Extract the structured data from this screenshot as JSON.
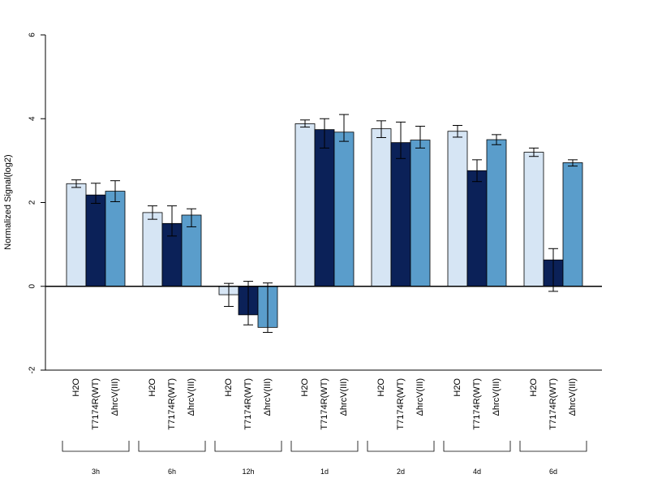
{
  "chart_data": {
    "type": "bar",
    "ylabel": "Normalized Signal(log2)",
    "ylim": [
      -2,
      6
    ],
    "yticks": [
      -2,
      0,
      2,
      4,
      6
    ],
    "series_names": [
      "H2O",
      "T7174R(WT)",
      "ΔhrcV(III)"
    ],
    "colors": [
      "#d6e5f4",
      "#0b2158",
      "#5a9dcb"
    ],
    "groups": [
      {
        "label": "3h",
        "values": [
          2.45,
          2.18,
          2.27
        ],
        "err_low": [
          2.36,
          1.98,
          2.02
        ],
        "err_high": [
          2.54,
          2.46,
          2.52
        ]
      },
      {
        "label": "6h",
        "values": [
          1.76,
          1.5,
          1.7
        ],
        "err_low": [
          1.6,
          1.2,
          1.42
        ],
        "err_high": [
          1.92,
          1.92,
          1.85
        ]
      },
      {
        "label": "12h",
        "values": [
          -0.2,
          -0.68,
          -0.98
        ],
        "err_low": [
          -0.48,
          -0.92,
          -1.1
        ],
        "err_high": [
          0.07,
          0.12,
          0.08
        ]
      },
      {
        "label": "1d",
        "values": [
          3.88,
          3.74,
          3.68
        ],
        "err_low": [
          3.8,
          3.3,
          3.46
        ],
        "err_high": [
          3.97,
          4.0,
          4.1
        ]
      },
      {
        "label": "2d",
        "values": [
          3.76,
          3.43,
          3.49
        ],
        "err_low": [
          3.55,
          3.05,
          3.3
        ],
        "err_high": [
          3.95,
          3.92,
          3.82
        ]
      },
      {
        "label": "4d",
        "values": [
          3.7,
          2.76,
          3.5
        ],
        "err_low": [
          3.56,
          2.5,
          3.38
        ],
        "err_high": [
          3.84,
          3.02,
          3.62
        ]
      },
      {
        "label": "6d",
        "values": [
          3.2,
          0.63,
          2.95
        ],
        "err_low": [
          3.1,
          -0.12,
          2.87
        ],
        "err_high": [
          3.3,
          0.9,
          3.02
        ]
      }
    ]
  }
}
